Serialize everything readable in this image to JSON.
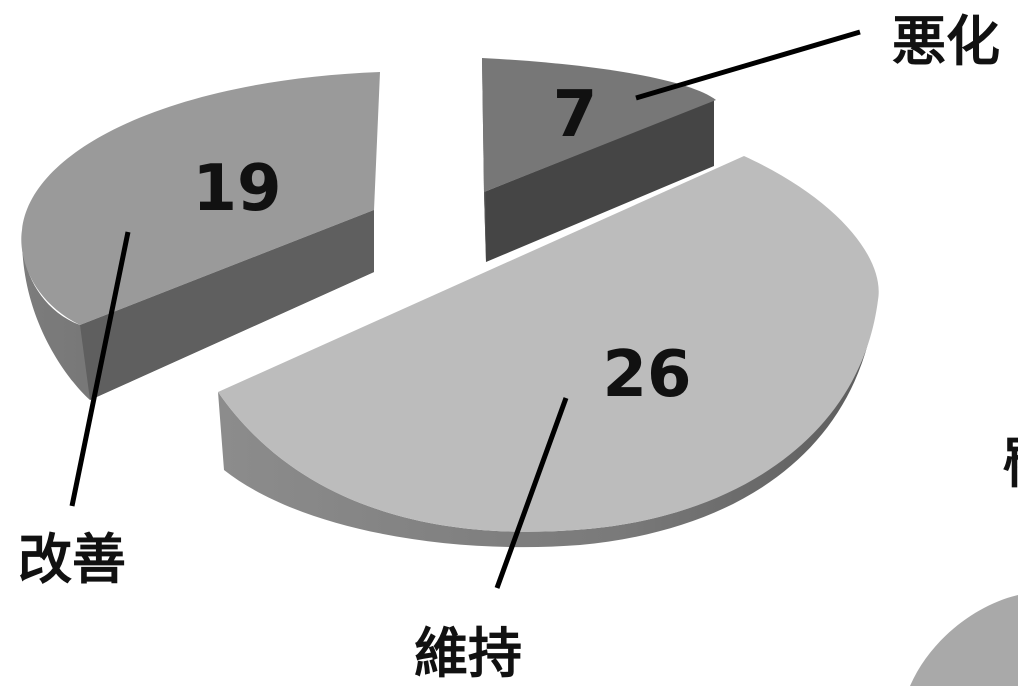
{
  "chart_data": {
    "type": "pie",
    "categories": [
      "改善",
      "維持",
      "悪化"
    ],
    "values": [
      19,
      26,
      7
    ],
    "colors": {
      "改善": {
        "top": "#9a9a9a",
        "side": "#6e6e6e",
        "cut": "#5f5f5f"
      },
      "維持": {
        "top": "#bcbcbc",
        "side": "#8f8f8f",
        "cut": "#6a6a6a"
      },
      "悪化": {
        "top": "#777777",
        "side": "#505050",
        "cut": "#454545"
      }
    },
    "exploded": true,
    "style": "3d"
  },
  "edge_fragments": {
    "right_text": "罹"
  }
}
